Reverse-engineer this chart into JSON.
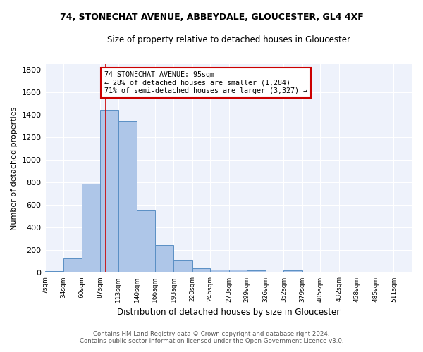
{
  "title1": "74, STONECHAT AVENUE, ABBEYDALE, GLOUCESTER, GL4 4XF",
  "title2": "Size of property relative to detached houses in Gloucester",
  "xlabel": "Distribution of detached houses by size in Gloucester",
  "ylabel": "Number of detached properties",
  "footnote1": "Contains HM Land Registry data © Crown copyright and database right 2024.",
  "footnote2": "Contains public sector information licensed under the Open Government Licence v3.0.",
  "annotation_line1": "74 STONECHAT AVENUE: 95sqm",
  "annotation_line2": "← 28% of detached houses are smaller (1,284)",
  "annotation_line3": "71% of semi-detached houses are larger (3,327) →",
  "bar_edges": [
    7,
    34,
    60,
    87,
    113,
    140,
    166,
    193,
    220,
    246,
    273,
    299,
    326,
    352,
    379,
    405,
    432,
    458,
    485,
    511,
    538
  ],
  "bar_heights": [
    15,
    125,
    790,
    1440,
    1345,
    550,
    248,
    108,
    37,
    30,
    30,
    20,
    0,
    20,
    0,
    0,
    0,
    0,
    0,
    0
  ],
  "bar_color": "#aec6e8",
  "bar_edge_color": "#5a8fc4",
  "red_line_x": 95,
  "ylim": [
    0,
    1850
  ],
  "yticks": [
    0,
    200,
    400,
    600,
    800,
    1000,
    1200,
    1400,
    1600,
    1800
  ],
  "background_color": "#eef2fb",
  "grid_color": "#ffffff",
  "annotation_box_color": "#ffffff",
  "annotation_box_edge_color": "#cc0000",
  "red_line_color": "#cc0000",
  "fig_width": 6.0,
  "fig_height": 5.0,
  "fig_dpi": 100
}
